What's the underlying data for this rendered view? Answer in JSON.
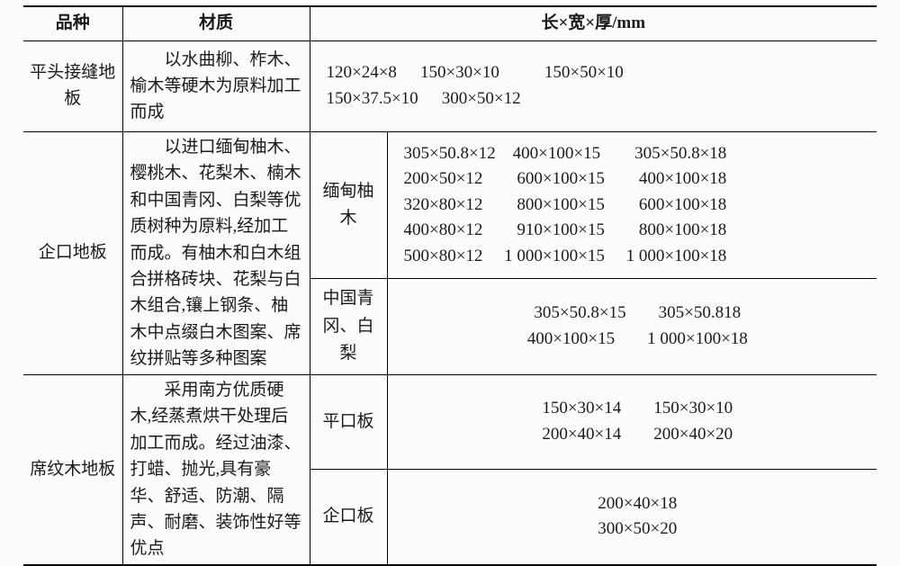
{
  "headers": {
    "variety": "品种",
    "material": "材质",
    "dim_header": "长×宽×厚/mm"
  },
  "rows": [
    {
      "variety": "平头接缝地板",
      "material": "以水曲柳、柞木、榆木等硬木为原料加工而成",
      "sizes": [
        [
          "120×24×8",
          "150×30×10"
        ],
        [
          "150×37.5×10",
          "300×50×12"
        ],
        [
          "150×50×10"
        ]
      ]
    },
    {
      "variety": "企口地板",
      "material": "以进口缅甸柚木、樱桃木、花梨木、楠木和中国青冈、白梨等优质树种为原料,经加工而成。有柚木和白木组合拼格砖块、花梨与白木组合,镶上钢条、柚木中点缀白木图案、席纹拼贴等多种图案",
      "subgroups": [
        {
          "subtype": "缅甸柚木",
          "size_lines": [
            "305×50.8×12　400×100×15　　305×50.8×18",
            "200×50×12　　600×100×15　　400×100×18",
            "320×80×12　　800×100×15　　600×100×18",
            "400×80×12　　910×100×15　　800×100×18",
            "500×80×12　 1 000×100×15　 1 000×100×18"
          ]
        },
        {
          "subtype": "中国青冈、白梨",
          "size_pairs": [
            [
              "305×50.8×15",
              "305×50.818"
            ],
            [
              "400×100×15",
              "1 000×100×18"
            ]
          ]
        }
      ]
    },
    {
      "variety": "席纹木地板",
      "material": "采用南方优质硬木,经蒸煮烘干处理后加工而成。经过油漆、打蜡、抛光,具有豪华、舒适、防潮、隔声、耐磨、装饰性好等优点",
      "subgroups": [
        {
          "subtype": "平口板",
          "size_pairs": [
            [
              "150×30×14",
              "150×30×10"
            ],
            [
              "200×40×14",
              "200×40×20"
            ]
          ]
        },
        {
          "subtype": "企口板",
          "size_pairs": [
            [
              "200×40×18"
            ],
            [
              "300×50×20"
            ]
          ]
        }
      ]
    }
  ]
}
